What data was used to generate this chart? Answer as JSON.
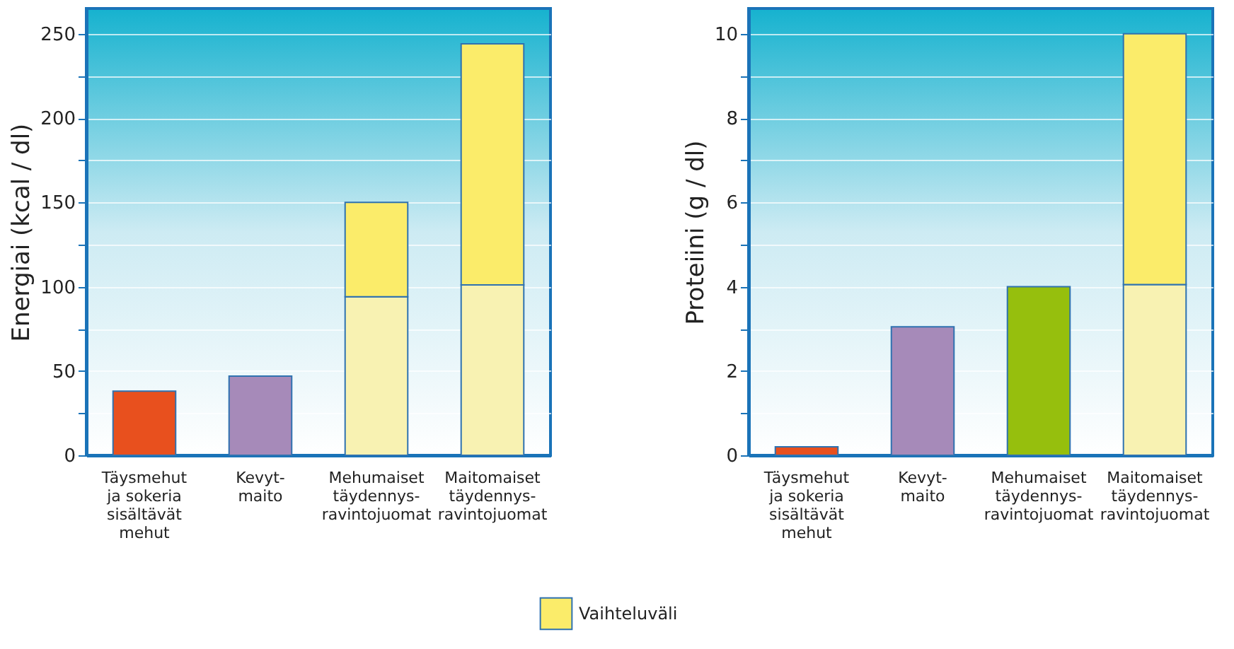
{
  "chart_data": [
    {
      "type": "bar",
      "stacked": true,
      "ylabel": "Energiai (kcal / dl)",
      "grid": true,
      "legend": "bottom",
      "categories": [
        "Täysmehut ja sokeria sisältävät mehut",
        "Kevyt-maito",
        "Mehumaiset täydennys-ravintojuomat",
        "Maitomaiset täydennys-ravintojuomat"
      ],
      "ylim": [
        0,
        265
      ],
      "yticks": [
        0,
        {
          "value": 25,
          "label": null
        },
        50,
        {
          "value": 75,
          "label": null
        },
        100,
        {
          "value": 125,
          "label": null
        },
        150,
        {
          "value": 175,
          "label": null
        },
        200,
        {
          "value": 225,
          "label": null
        },
        250
      ],
      "series": [
        {
          "colors": [
            "#e8501e",
            "#a68ab9",
            "#f8f2b2",
            "#f8f2b2"
          ],
          "values": [
            38,
            47,
            94,
            101
          ]
        },
        {
          "name": "Vaihteluväli",
          "color": "#fbec6a",
          "values": [
            null,
            null,
            56,
            143
          ]
        }
      ]
    },
    {
      "type": "bar",
      "stacked": true,
      "ylabel": "Proteiini (g / dl)",
      "grid": true,
      "categories": [
        "Täysmehut ja sokeria sisältävät mehut",
        "Kevyt-maito",
        "Mehumaiset täydennys-ravintojuomat",
        "Maitomaiset täydennys-ravintojuomat"
      ],
      "ylim": [
        0,
        10.6
      ],
      "yticks": [
        0,
        {
          "value": 1,
          "label": null
        },
        2,
        {
          "value": 3,
          "label": null
        },
        4,
        {
          "value": 5,
          "label": null
        },
        6,
        {
          "value": 7,
          "label": null
        },
        8,
        {
          "value": 9,
          "label": null
        },
        10
      ],
      "series": [
        {
          "colors": [
            "#e8501e",
            "#a68ab9",
            "#96bf0d",
            "#f8f2b2"
          ],
          "values": [
            0.2,
            3.05,
            4.0,
            4.05
          ]
        },
        {
          "color": "#fbec6a",
          "values": [
            null,
            null,
            null,
            5.95
          ]
        }
      ]
    }
  ]
}
